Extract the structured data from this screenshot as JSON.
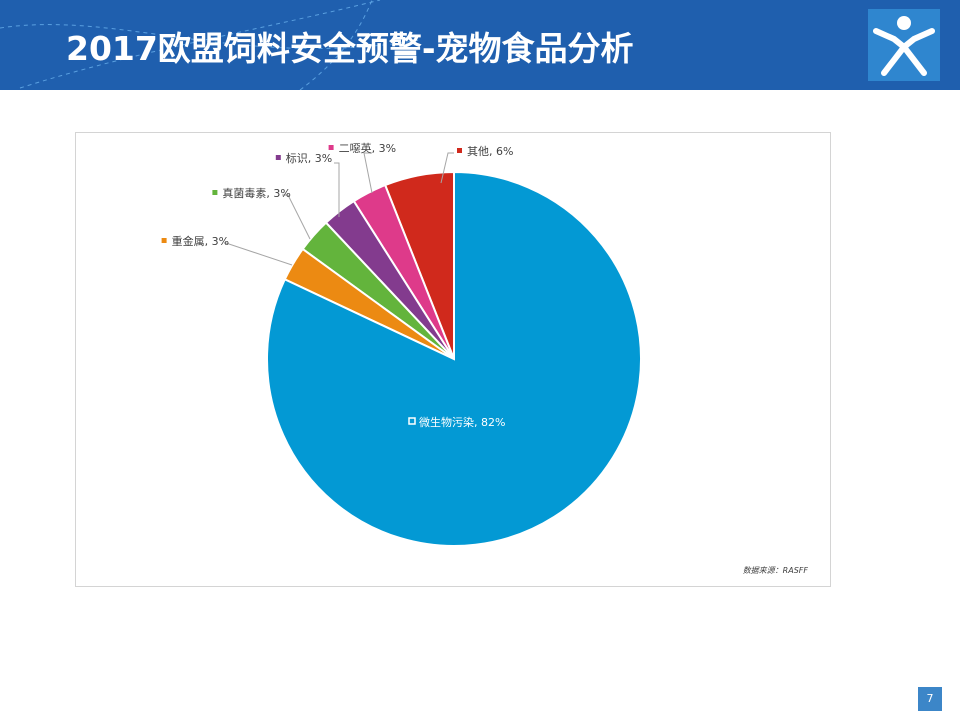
{
  "slide": {
    "title": "2017欧盟饲料安全预警-宠物食品分析",
    "source": "数据来源：RASFF",
    "page_number": "7"
  },
  "colors": {
    "header": "#1f5fae",
    "logo_bg": "#2f86cf"
  },
  "chart_data": {
    "type": "pie",
    "title": "",
    "slices": [
      {
        "label": "其他, 6%",
        "category": "其他",
        "value": 6,
        "color": "#d0291c"
      },
      {
        "label": "二噁英, 3%",
        "category": "二噁英",
        "value": 3,
        "color": "#de3a8a"
      },
      {
        "label": "标识, 3%",
        "category": "标识",
        "value": 3,
        "color": "#833b8e"
      },
      {
        "label": "真菌毒素, 3%",
        "category": "真菌毒素",
        "value": 3,
        "color": "#63b43c"
      },
      {
        "label": "重金属, 3%",
        "category": "重金属",
        "value": 3,
        "color": "#ec8a12"
      },
      {
        "label": "微生物污染, 82%",
        "category": "微生物污染",
        "value": 82,
        "color": "#0399d4"
      }
    ]
  }
}
